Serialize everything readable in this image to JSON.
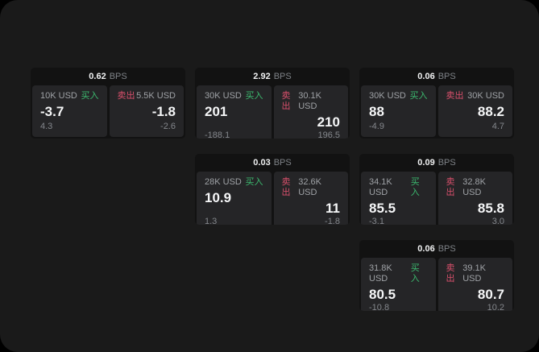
{
  "page": {
    "background": "#000000",
    "surface_background": "#1a1a1a"
  },
  "labels": {
    "bps_unit": "BPS",
    "buy": "买入",
    "sell": "卖出"
  },
  "colors": {
    "buy_accent": "#3cba6f",
    "sell_accent": "#d9506c",
    "card_background": "#121212",
    "panel_background": "#252527",
    "primary_text": "#f5f6f7",
    "muted_text": "#84878c"
  },
  "cards": [
    {
      "row": 1,
      "col": 1,
      "spread_bps": "0.62",
      "buy": {
        "size": "10K USD",
        "price": "-3.7",
        "delta": "4.3"
      },
      "sell": {
        "size": "5.5K USD",
        "price": "-1.8",
        "delta": "-2.6"
      }
    },
    {
      "row": 1,
      "col": 2,
      "spread_bps": "2.92",
      "buy": {
        "size": "30K USD",
        "price": "201",
        "delta": "-188.1"
      },
      "sell": {
        "size": "30.1K USD",
        "price": "210",
        "delta": "196.5"
      }
    },
    {
      "row": 1,
      "col": 3,
      "spread_bps": "0.06",
      "buy": {
        "size": "30K USD",
        "price": "88",
        "delta": "-4.9"
      },
      "sell": {
        "size": "30K USD",
        "price": "88.2",
        "delta": "4.7"
      }
    },
    {
      "row": 2,
      "col": 2,
      "spread_bps": "0.03",
      "buy": {
        "size": "28K USD",
        "price": "10.9",
        "delta": "1.3"
      },
      "sell": {
        "size": "32.6K USD",
        "price": "11",
        "delta": "-1.8"
      }
    },
    {
      "row": 2,
      "col": 3,
      "spread_bps": "0.09",
      "buy": {
        "size": "34.1K USD",
        "price": "85.5",
        "delta": "-3.1"
      },
      "sell": {
        "size": "32.8K USD",
        "price": "85.8",
        "delta": "3.0"
      }
    },
    {
      "row": 3,
      "col": 3,
      "spread_bps": "0.06",
      "buy": {
        "size": "31.8K USD",
        "price": "80.5",
        "delta": "-10.8"
      },
      "sell": {
        "size": "39.1K USD",
        "price": "80.7",
        "delta": "10.2"
      }
    }
  ]
}
